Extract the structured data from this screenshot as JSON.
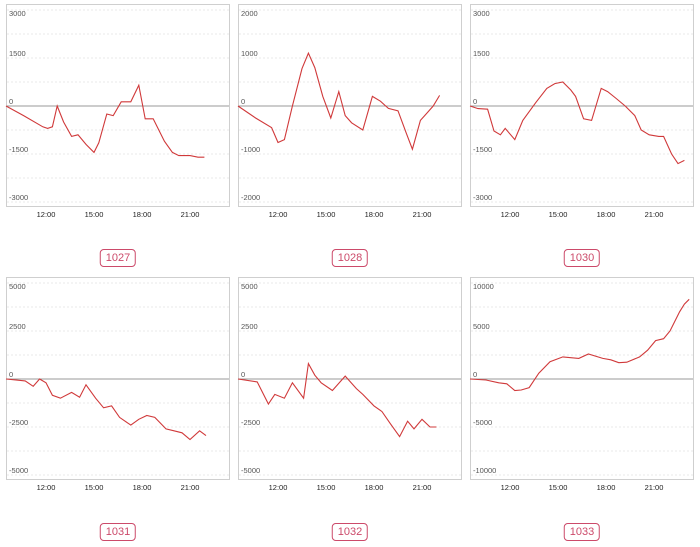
{
  "chart_data": [
    {
      "type": "line",
      "id_label": "1027",
      "ylim": [
        -3000,
        3000
      ],
      "yticks": [
        "3000",
        "1500",
        "0",
        "-1500",
        "-3000"
      ],
      "ytick_values": [
        3000,
        1500,
        0,
        -1500,
        -3000
      ],
      "xlim": [
        9.5,
        23.5
      ],
      "xticks": [
        "12:00",
        "15:00",
        "18:00",
        "21:00"
      ],
      "xtick_values": [
        12,
        15,
        18,
        21
      ],
      "x": [
        9.5,
        10.6,
        11.8,
        12.1,
        12.4,
        12.7,
        13.1,
        13.6,
        14.0,
        14.5,
        15.0,
        15.3,
        15.8,
        16.2,
        16.7,
        17.3,
        17.8,
        18.2,
        18.7,
        19.4,
        19.9,
        20.3,
        21.0,
        21.5,
        21.9
      ],
      "y": [
        0,
        -300,
        -650,
        -700,
        -650,
        0,
        -500,
        -950,
        -900,
        -1200,
        -1450,
        -1150,
        -250,
        -300,
        130,
        130,
        650,
        -400,
        -400,
        -1100,
        -1450,
        -1550,
        -1550,
        -1600,
        -1600
      ],
      "grid": true,
      "color": "#d0393a"
    },
    {
      "type": "line",
      "id_label": "1028",
      "ylim": [
        -2000,
        2000
      ],
      "yticks": [
        "2000",
        "1000",
        "0",
        "-1000",
        "-2000"
      ],
      "ytick_values": [
        2000,
        1000,
        0,
        -1000,
        -2000
      ],
      "xlim": [
        9.5,
        23.5
      ],
      "xticks": [
        "12:00",
        "15:00",
        "18:00",
        "21:00"
      ],
      "xtick_values": [
        12,
        15,
        18,
        21
      ],
      "x": [
        9.5,
        10.6,
        11.6,
        12.0,
        12.4,
        12.9,
        13.5,
        13.9,
        14.3,
        14.8,
        15.3,
        15.8,
        16.2,
        16.6,
        17.3,
        17.9,
        18.4,
        18.9,
        19.5,
        20.0,
        20.4,
        20.9,
        21.3,
        21.7,
        22.1
      ],
      "y": [
        0,
        -250,
        -450,
        -760,
        -700,
        0,
        780,
        1100,
        800,
        200,
        -250,
        300,
        -200,
        -350,
        -500,
        200,
        100,
        -50,
        -100,
        -550,
        -900,
        -300,
        -150,
        0,
        220
      ],
      "grid": true,
      "color": "#d0393a"
    },
    {
      "type": "line",
      "id_label": "1030",
      "ylim": [
        -3000,
        3000
      ],
      "yticks": [
        "3000",
        "1500",
        "0",
        "-1500",
        "-3000"
      ],
      "ytick_values": [
        3000,
        1500,
        0,
        -1500,
        -3000
      ],
      "xlim": [
        9.5,
        23.5
      ],
      "xticks": [
        "12:00",
        "15:00",
        "18:00",
        "21:00"
      ],
      "xtick_values": [
        12,
        15,
        18,
        21
      ],
      "x": [
        9.5,
        10.0,
        10.6,
        11.0,
        11.4,
        11.7,
        12.3,
        12.8,
        13.6,
        14.3,
        14.8,
        15.3,
        15.8,
        16.1,
        16.6,
        17.1,
        17.7,
        18.1,
        18.6,
        19.2,
        19.8,
        20.2,
        20.7,
        21.3,
        21.6,
        22.1,
        22.5,
        22.9
      ],
      "y": [
        0,
        -80,
        -100,
        -780,
        -900,
        -700,
        -1050,
        -450,
        100,
        550,
        700,
        750,
        500,
        300,
        -400,
        -450,
        550,
        450,
        250,
        0,
        -300,
        -750,
        -900,
        -950,
        -950,
        -1500,
        -1800,
        -1700
      ],
      "grid": true,
      "color": "#d0393a"
    },
    {
      "type": "line",
      "id_label": "1031",
      "ylim": [
        -5000,
        5000
      ],
      "yticks": [
        "5000",
        "2500",
        "0",
        "-2500",
        "-5000"
      ],
      "ytick_values": [
        5000,
        2500,
        0,
        -2500,
        -5000
      ],
      "xlim": [
        9.5,
        23.5
      ],
      "xticks": [
        "12:00",
        "15:00",
        "18:00",
        "21:00"
      ],
      "xtick_values": [
        12,
        15,
        18,
        21
      ],
      "x": [
        9.5,
        10.7,
        11.2,
        11.6,
        12.0,
        12.4,
        12.9,
        13.6,
        14.1,
        14.5,
        15.1,
        15.6,
        16.1,
        16.6,
        17.3,
        17.8,
        18.3,
        18.8,
        19.5,
        20.0,
        20.5,
        21.0,
        21.6,
        22.0
      ],
      "y": [
        0,
        -100,
        -380,
        0,
        -200,
        -850,
        -1000,
        -700,
        -950,
        -300,
        -1000,
        -1500,
        -1400,
        -2000,
        -2400,
        -2100,
        -1900,
        -2000,
        -2600,
        -2700,
        -2800,
        -3150,
        -2700,
        -2950
      ],
      "grid": true,
      "color": "#d0393a"
    },
    {
      "type": "line",
      "id_label": "1032",
      "ylim": [
        -5000,
        5000
      ],
      "yticks": [
        "5000",
        "2500",
        "0",
        "-2500",
        "-5000"
      ],
      "ytick_values": [
        5000,
        2500,
        0,
        -2500,
        -5000
      ],
      "xlim": [
        9.5,
        23.5
      ],
      "xticks": [
        "12:00",
        "15:00",
        "18:00",
        "21:00"
      ],
      "xtick_values": [
        12,
        15,
        18,
        21
      ],
      "x": [
        9.5,
        10.7,
        11.4,
        11.8,
        12.4,
        12.9,
        13.6,
        13.9,
        14.3,
        14.7,
        15.4,
        16.2,
        16.9,
        17.3,
        18.0,
        18.5,
        19.0,
        19.6,
        20.1,
        20.5,
        21.0,
        21.5,
        21.9
      ],
      "y": [
        0,
        -150,
        -1300,
        -800,
        -1000,
        -200,
        -1000,
        800,
        200,
        -200,
        -600,
        150,
        -500,
        -800,
        -1400,
        -1700,
        -2300,
        -3000,
        -2200,
        -2600,
        -2100,
        -2500,
        -2500
      ],
      "grid": true,
      "color": "#d0393a"
    },
    {
      "type": "line",
      "id_label": "1033",
      "ylim": [
        -10000,
        10000
      ],
      "yticks": [
        "10000",
        "5000",
        "0",
        "-5000",
        "-10000"
      ],
      "ytick_values": [
        10000,
        5000,
        0,
        -5000,
        -10000
      ],
      "xlim": [
        9.5,
        23.5
      ],
      "xticks": [
        "12:00",
        "15:00",
        "18:00",
        "21:00"
      ],
      "xtick_values": [
        12,
        15,
        18,
        21
      ],
      "x": [
        9.5,
        10.5,
        11.3,
        11.8,
        12.3,
        12.7,
        13.2,
        13.8,
        14.5,
        15.3,
        16.3,
        16.9,
        17.8,
        18.3,
        18.8,
        19.3,
        20.1,
        20.6,
        21.1,
        21.6,
        22.0,
        22.3,
        22.6,
        22.9,
        23.2
      ],
      "y": [
        0,
        -100,
        -400,
        -500,
        -1200,
        -1150,
        -900,
        600,
        1800,
        2300,
        2150,
        2600,
        2150,
        2000,
        1700,
        1750,
        2300,
        3000,
        4000,
        4200,
        5000,
        6000,
        7000,
        7800,
        8300
      ],
      "grid": true,
      "color": "#d0393a"
    }
  ]
}
